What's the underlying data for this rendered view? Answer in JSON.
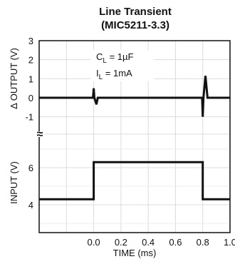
{
  "title_line1": "Line Transient",
  "title_line2": "(MIC5211-3.3)",
  "annotations": {
    "cl_main": "C",
    "cl_sub": "L",
    "cl_rest": " = 1µF",
    "il_main": "I",
    "il_sub": "L",
    "il_rest": " = 1mA"
  },
  "axis_break_symbol": "≈",
  "chart_data": {
    "type": "line",
    "title": "Line Transient (MIC5211-3.3)",
    "xlabel": "TIME (ms)",
    "xlim": [
      -0.4,
      1.0
    ],
    "x_ticks": [
      0.0,
      0.2,
      0.4,
      0.6,
      0.8,
      1.0
    ],
    "x_tick_labels": [
      "0.0",
      "0.2",
      "0.4",
      "0.6",
      "0.8",
      "1.0"
    ],
    "grid": true,
    "panels": [
      {
        "name": "output",
        "ylabel": "Δ OUTPUT (V)",
        "ylim": [
          -1.5,
          3
        ],
        "y_ticks": [
          3,
          2,
          1,
          0,
          -1
        ],
        "y_tick_labels": [
          "3",
          "2",
          "1",
          "0",
          "-1"
        ],
        "x": [
          -0.4,
          -0.005,
          0.0,
          0.005,
          0.02,
          0.03,
          0.795,
          0.8,
          0.805,
          0.82,
          0.835,
          1.0
        ],
        "y": [
          0.0,
          0.0,
          0.5,
          0.0,
          -0.35,
          0.0,
          0.0,
          -1.0,
          0.0,
          1.15,
          0.0,
          0.0
        ]
      },
      {
        "name": "input",
        "ylabel": "INPUT (V)",
        "ylim": [
          2.5,
          7.5
        ],
        "y_ticks": [
          6,
          4
        ],
        "y_tick_labels": [
          "6",
          "4"
        ],
        "x": [
          -0.4,
          0.0,
          0.0,
          0.8,
          0.8,
          1.0
        ],
        "y": [
          4.3,
          4.3,
          6.3,
          6.3,
          4.3,
          4.3
        ]
      }
    ]
  }
}
